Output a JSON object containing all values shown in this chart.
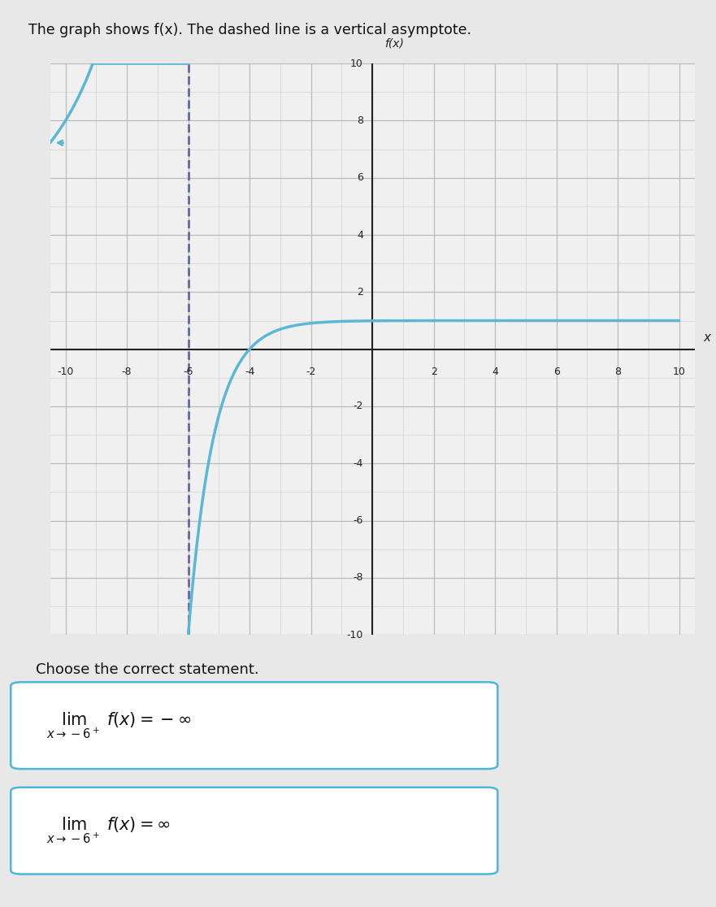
{
  "title": "The graph shows f(x). The dashed line is a vertical asymptote.",
  "asymptote_x": -6,
  "xlim": [
    -10.5,
    10.5
  ],
  "ylim": [
    -10,
    10
  ],
  "curve_color": "#5bb8d4",
  "asymptote_color": "#6666aa",
  "bg_color": "#e8e8e8",
  "grid_color_major": "#bbbbbb",
  "grid_color_minor": "#d0d0d0",
  "axis_color": "#222222",
  "statement_text": "Choose the correct statement.",
  "xlabel": "x",
  "ylabel": "f(x)",
  "func_scale": -32,
  "ha_y": 1.0
}
